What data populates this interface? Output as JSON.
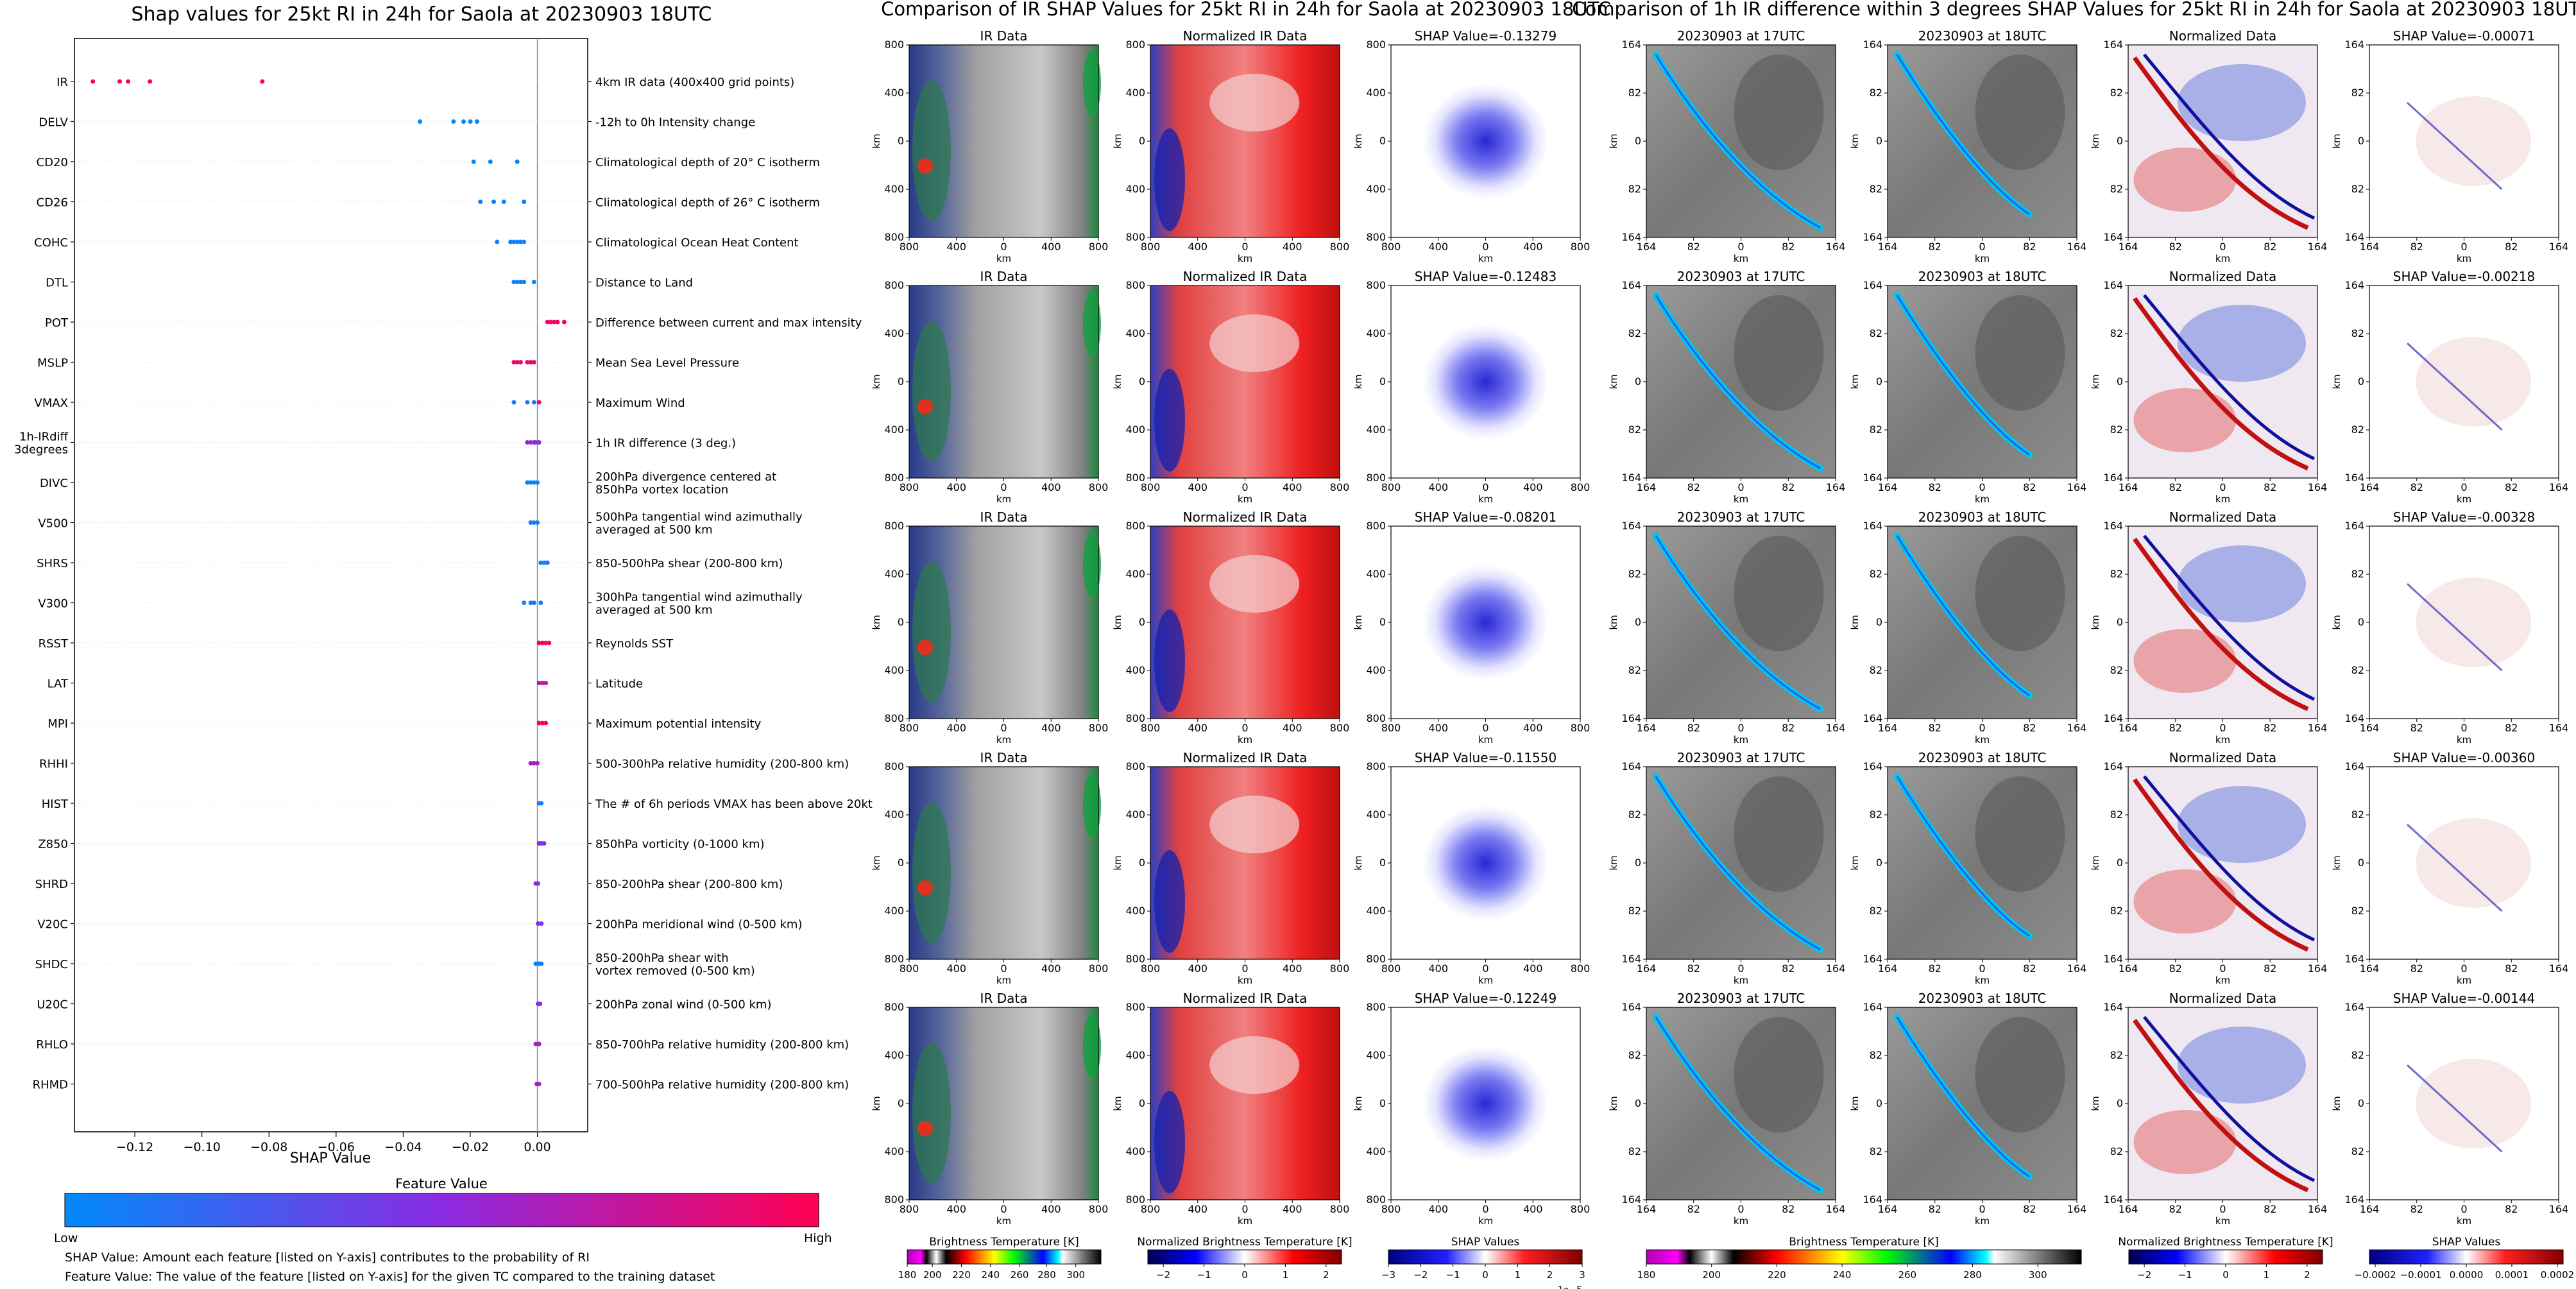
{
  "shap_panel": {
    "title": "Shap values for 25kt RI in 24h for Saola at 20230903 18UTC",
    "xlabel": "SHAP Value",
    "colorbar_title": "Feature Value",
    "colorbar_low": "Low",
    "colorbar_high": "High",
    "footnote1": "SHAP Value: Amount each feature [listed on Y-axis] contributes to the probability of RI",
    "footnote2": "Feature Value: The value of the feature [listed on Y-axis] for the given TC compared to the training dataset"
  },
  "ir_section": {
    "title": "Comparison of IR SHAP Values for 25kt RI in 24h for Saola at 20230903 18UTC",
    "col_titles": [
      "IR Data",
      "Normalized IR Data"
    ],
    "shap_titles": [
      "SHAP Value=-0.13279",
      "SHAP Value=-0.12483",
      "SHAP Value=-0.08201",
      "SHAP Value=-0.11550",
      "SHAP Value=-0.12249"
    ],
    "xticks": [
      "800",
      "400",
      "0",
      "400",
      "800"
    ],
    "yticks": [
      "800",
      "400",
      "0",
      "400",
      "800"
    ],
    "axis_label": "km",
    "colorbars": [
      {
        "label": "Brightness Temperature [K]",
        "ticks": [
          "180",
          "200",
          "220",
          "240",
          "260",
          "280",
          "300"
        ]
      },
      {
        "label": "Normalized Brightness Temperature [K]",
        "ticks": [
          "−2",
          "−1",
          "0",
          "1",
          "2"
        ]
      },
      {
        "label": "SHAP Values",
        "ticks": [
          "−3",
          "−2",
          "−1",
          "0",
          "1",
          "2",
          "3"
        ],
        "exponent": "1e−5"
      }
    ]
  },
  "diff_section": {
    "title": "Comparison of 1h IR difference within 3 degrees SHAP Values for 25kt RI in 24h for Saola at 20230903 18UTC",
    "col_titles": [
      "20230903 at 17UTC",
      "20230903 at 18UTC",
      "Normalized Data"
    ],
    "shap_titles": [
      "SHAP Value=-0.00071",
      "SHAP Value=-0.00218",
      "SHAP Value=-0.00328",
      "SHAP Value=-0.00360",
      "SHAP Value=-0.00144"
    ],
    "ticks": [
      "164",
      "82",
      "0",
      "82",
      "164"
    ],
    "axis_label": "km",
    "colorbars": [
      {
        "label": "Brightness Temperature [K]",
        "ticks": [
          "180",
          "200",
          "220",
          "240",
          "260",
          "280",
          "300"
        ]
      },
      {
        "label": "Normalized Brightness Temperature [K]",
        "ticks": [
          "−2",
          "−1",
          "0",
          "1",
          "2"
        ]
      },
      {
        "label": "SHAP Values",
        "ticks": [
          "−0.0002",
          "−0.0001",
          "0.0000",
          "0.0001",
          "0.0002"
        ]
      }
    ]
  },
  "colors": {
    "low": "#008afb",
    "high": "#ff0052",
    "mid": "#8a2be2"
  },
  "chart_data": {
    "type": "scatter",
    "title": "Shap values for 25kt RI in 24h for Saola at 20230903 18UTC",
    "xlabel": "SHAP Value",
    "ylabel": "",
    "xlim": [
      -0.138,
      0.015
    ],
    "xticks": [
      -0.12,
      -0.1,
      -0.08,
      -0.06,
      -0.04,
      -0.02,
      0.0
    ],
    "xtick_labels": [
      "−0.12",
      "−0.10",
      "−0.08",
      "−0.06",
      "−0.04",
      "−0.02",
      "0.00"
    ],
    "features": [
      {
        "name": "IR",
        "desc": "4km IR data (400x400 grid points)",
        "points": [
          [
            -0.1325,
            0.95
          ],
          [
            -0.1245,
            0.95
          ],
          [
            -0.122,
            0.95
          ],
          [
            -0.1155,
            0.95
          ],
          [
            -0.082,
            0.95
          ]
        ]
      },
      {
        "name": "DELV",
        "desc": "-12h to 0h Intensity change",
        "points": [
          [
            -0.035,
            0.0
          ],
          [
            -0.025,
            0.0
          ],
          [
            -0.022,
            0.0
          ],
          [
            -0.02,
            0.0
          ],
          [
            -0.018,
            0.0
          ]
        ]
      },
      {
        "name": "CD20",
        "desc": "Climatological depth of 20° C isotherm",
        "points": [
          [
            -0.019,
            0.05
          ],
          [
            -0.014,
            0.05
          ],
          [
            -0.006,
            0.05
          ]
        ]
      },
      {
        "name": "CD26",
        "desc": "Climatological depth of 26° C isotherm",
        "points": [
          [
            -0.017,
            0.05
          ],
          [
            -0.013,
            0.05
          ],
          [
            -0.01,
            0.05
          ],
          [
            -0.004,
            0.05
          ]
        ]
      },
      {
        "name": "COHC",
        "desc": "Climatological Ocean Heat Content",
        "points": [
          [
            -0.012,
            0.05
          ],
          [
            -0.008,
            0.05
          ],
          [
            -0.007,
            0.05
          ],
          [
            -0.006,
            0.05
          ],
          [
            -0.005,
            0.05
          ],
          [
            -0.004,
            0.05
          ]
        ]
      },
      {
        "name": "DTL",
        "desc": "Distance to Land",
        "points": [
          [
            -0.007,
            0.05
          ],
          [
            -0.006,
            0.05
          ],
          [
            -0.005,
            0.05
          ],
          [
            -0.004,
            0.05
          ],
          [
            -0.001,
            0.05
          ]
        ]
      },
      {
        "name": "POT",
        "desc": "Difference between current and max intensity",
        "points": [
          [
            0.003,
            0.95
          ],
          [
            0.004,
            0.95
          ],
          [
            0.005,
            0.95
          ],
          [
            0.006,
            0.95
          ],
          [
            0.008,
            0.95
          ]
        ]
      },
      {
        "name": "MSLP",
        "desc": "Mean Sea Level Pressure",
        "points": [
          [
            -0.007,
            0.9
          ],
          [
            -0.006,
            0.9
          ],
          [
            -0.005,
            0.9
          ],
          [
            -0.003,
            0.9
          ],
          [
            -0.002,
            0.9
          ],
          [
            -0.001,
            0.9
          ]
        ]
      },
      {
        "name": "VMAX",
        "desc": "Maximum Wind",
        "points": [
          [
            -0.007,
            0.05
          ],
          [
            -0.003,
            0.1
          ],
          [
            -0.001,
            0.1
          ],
          [
            0.0005,
            0.9
          ]
        ]
      },
      {
        "name": "1h-IRdiff\n3degrees",
        "desc": "1h IR difference (3 deg.)",
        "points": [
          [
            -0.003,
            0.55
          ],
          [
            -0.002,
            0.5
          ],
          [
            -0.001,
            0.5
          ],
          [
            -0.0005,
            0.5
          ],
          [
            0.0005,
            0.45
          ]
        ]
      },
      {
        "name": "DIVC",
        "desc": "200hPa divergence centered at\n850hPa vortex location",
        "points": [
          [
            -0.003,
            0.05
          ],
          [
            -0.002,
            0.05
          ],
          [
            -0.001,
            0.05
          ],
          [
            0.0,
            0.05
          ]
        ]
      },
      {
        "name": "V500",
        "desc": "500hPa tangential wind azimuthally\naveraged at 500 km",
        "points": [
          [
            -0.002,
            0.05
          ],
          [
            -0.001,
            0.05
          ],
          [
            0.0,
            0.05
          ]
        ]
      },
      {
        "name": "SHRS",
        "desc": "850-500hPa shear (200-800 km)",
        "points": [
          [
            0.001,
            0.05
          ],
          [
            0.002,
            0.05
          ],
          [
            0.003,
            0.05
          ]
        ]
      },
      {
        "name": "V300",
        "desc": "300hPa tangential wind azimuthally\naveraged at 500 km",
        "points": [
          [
            -0.004,
            0.05
          ],
          [
            -0.002,
            0.05
          ],
          [
            -0.001,
            0.1
          ],
          [
            0.001,
            0.05
          ]
        ]
      },
      {
        "name": "RSST",
        "desc": "Reynolds SST",
        "points": [
          [
            0.0005,
            0.95
          ],
          [
            0.0015,
            0.95
          ],
          [
            0.0025,
            0.95
          ],
          [
            0.0035,
            0.95
          ]
        ]
      },
      {
        "name": "LAT",
        "desc": "Latitude",
        "points": [
          [
            0.0005,
            0.7
          ],
          [
            0.0015,
            0.7
          ],
          [
            0.0025,
            0.7
          ]
        ]
      },
      {
        "name": "MPI",
        "desc": "Maximum potential intensity",
        "points": [
          [
            0.0005,
            0.95
          ],
          [
            0.0015,
            0.95
          ],
          [
            0.0025,
            0.95
          ]
        ]
      },
      {
        "name": "RHHI",
        "desc": "500-300hPa relative humidity (200-800 km)",
        "points": [
          [
            -0.002,
            0.6
          ],
          [
            -0.001,
            0.6
          ],
          [
            0.0,
            0.6
          ]
        ]
      },
      {
        "name": "HIST",
        "desc": "The # of 6h periods VMAX has been above 20kt",
        "points": [
          [
            0.0005,
            0.05
          ],
          [
            0.0012,
            0.05
          ]
        ]
      },
      {
        "name": "Z850",
        "desc": "850hPa vorticity (0-1000 km)",
        "points": [
          [
            0.0005,
            0.5
          ],
          [
            0.0012,
            0.5
          ],
          [
            0.002,
            0.5
          ]
        ]
      },
      {
        "name": "SHRD",
        "desc": "850-200hPa shear (200-800 km)",
        "points": [
          [
            -0.0005,
            0.5
          ],
          [
            0.0002,
            0.5
          ]
        ]
      },
      {
        "name": "V20C",
        "desc": "200hPa meridional wind (0-500 km)",
        "points": [
          [
            0.0002,
            0.5
          ],
          [
            0.0012,
            0.5
          ]
        ]
      },
      {
        "name": "SHDC",
        "desc": "850-200hPa shear with\nvortex removed (0-500 km)",
        "points": [
          [
            -0.0005,
            0.05
          ],
          [
            0.0005,
            0.05
          ],
          [
            0.0012,
            0.05
          ]
        ]
      },
      {
        "name": "U20C",
        "desc": "200hPa zonal wind (0-500 km)",
        "points": [
          [
            0.0002,
            0.5
          ],
          [
            0.0008,
            0.5
          ]
        ]
      },
      {
        "name": "RHLO",
        "desc": "850-700hPa relative humidity (200-800 km)",
        "points": [
          [
            -0.0005,
            0.6
          ],
          [
            0.0005,
            0.6
          ]
        ]
      },
      {
        "name": "RHMD",
        "desc": "700-500hPa relative humidity (200-800 km)",
        "points": [
          [
            -0.0002,
            0.6
          ],
          [
            0.0005,
            0.6
          ]
        ]
      }
    ]
  }
}
